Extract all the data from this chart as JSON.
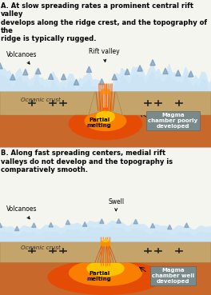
{
  "bg_color": "#f5f5f0",
  "panel_A_title": "A. At slow spreading rates a prominent central rift valley\ndevelops along the ridge crest, and the topography of the\nridge is typically rugged.",
  "panel_B_title": "B. Along fast spreading centers, medial rift\nvalleys do not develop and the topography is\ncomparatively smooth.",
  "label_volcanoes_A": "Volcanoes",
  "label_rift": "Rift valley",
  "label_oceanic_A": "Oceanic crust",
  "label_partial_A": "Partial\nmelting",
  "label_magma_A": "Magma\nchamber poorly\ndeveloped",
  "label_volcanoes_B": "Volcanoes",
  "label_swell": "Swell",
  "label_oceanic_B": "Oceanic crust",
  "label_partial_B": "Partial\nmelting",
  "label_magma_B": "Magma\nchamber well\ndeveloped",
  "crust_color": "#c8a96e",
  "mantle_color": "#d4562a",
  "snow_color": "#cce0f0",
  "snow_dark": "#a0c0d8",
  "rock_color": "#8B7355",
  "magma_color": "#ff6600",
  "magma_glow": "#ffaa00",
  "label_box_color": "#7a8a8a",
  "title_fontsize": 6.0,
  "label_fontsize": 5.5
}
